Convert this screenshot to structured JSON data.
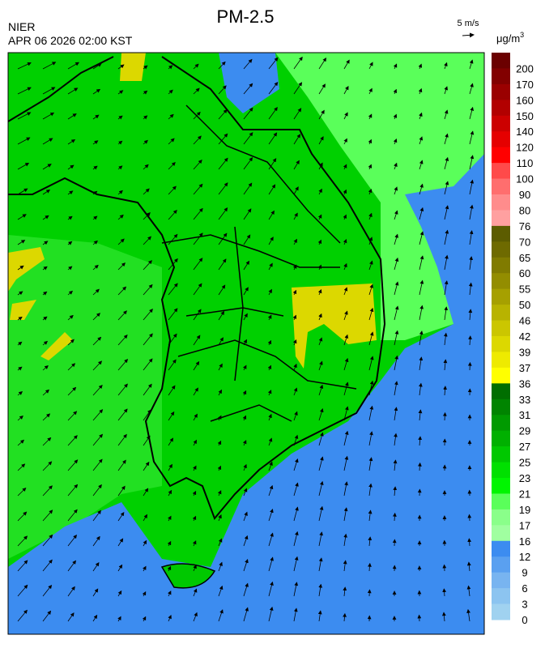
{
  "header": {
    "title": "PM-2.5",
    "agency": "NIER",
    "datetime": "APR 06 2026 02:00 KST",
    "wind_scale": "5 m/s",
    "unit": "μg/m",
    "unit_sup": "3"
  },
  "colorbar": {
    "labels": [
      200,
      170,
      160,
      150,
      140,
      120,
      110,
      100,
      90,
      80,
      76,
      70,
      65,
      60,
      55,
      50,
      46,
      42,
      39,
      37,
      36,
      33,
      31,
      29,
      27,
      25,
      23,
      21,
      19,
      17,
      16,
      12,
      9,
      6,
      3,
      0
    ],
    "colors": [
      "#6b0000",
      "#820000",
      "#9a0000",
      "#b20000",
      "#cc0000",
      "#e50000",
      "#ff0000",
      "#ff4a4a",
      "#ff6e6e",
      "#ff8c8c",
      "#ffa0a0",
      "#5c5c00",
      "#6e6a00",
      "#807b00",
      "#938d00",
      "#a6a000",
      "#b8b300",
      "#cbc600",
      "#dcd800",
      "#eeea00",
      "#ffff00",
      "#006e00",
      "#008400",
      "#009a00",
      "#00b000",
      "#00c800",
      "#00e000",
      "#00f500",
      "#5aff5a",
      "#8aff8a",
      "#a0ffa0",
      "#3c8cf0",
      "#5aa0f0",
      "#78b4f0",
      "#8cc4f0",
      "#a0d2f0"
    ]
  }
}
